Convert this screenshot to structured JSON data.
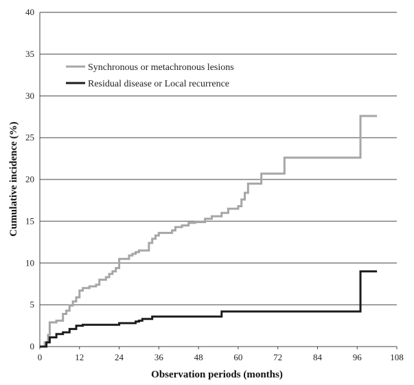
{
  "chart_data": {
    "type": "line",
    "xlabel": "Observation periods (months)",
    "ylabel": "Cumulative  incidence (%)",
    "xlim": [
      0,
      108
    ],
    "ylim": [
      0,
      40
    ],
    "xticks": [
      "0",
      "12",
      "24",
      "36",
      "48",
      "60",
      "72",
      "84",
      "96",
      "108"
    ],
    "yticks": [
      "0",
      "5",
      "10",
      "15",
      "20",
      "25",
      "30",
      "35",
      "40"
    ],
    "grid": "horizontal",
    "legend_position": "top-left",
    "step": true,
    "series": [
      {
        "name": "Synchronous or metachronous lesions",
        "color": "#a6a6a6",
        "x": [
          0,
          1.5,
          2.5,
          3,
          5,
          7,
          8,
          9,
          10,
          11,
          12,
          13,
          15,
          17,
          18,
          20,
          21,
          22,
          23,
          24,
          27,
          28,
          29,
          30,
          31,
          33,
          34,
          35,
          36,
          40,
          41,
          43,
          45,
          47,
          50,
          52,
          55,
          57,
          60,
          61,
          62,
          63,
          64,
          67,
          74,
          97,
          102
        ],
        "y": [
          0,
          0.5,
          1.4,
          2.9,
          3.1,
          3.9,
          4.3,
          4.9,
          5.4,
          5.9,
          6.7,
          7.0,
          7.2,
          7.4,
          8.0,
          8.3,
          8.7,
          9.0,
          9.4,
          10.5,
          10.9,
          11.1,
          11.3,
          11.5,
          11.5,
          12.4,
          12.9,
          13.3,
          13.6,
          13.9,
          14.3,
          14.5,
          14.8,
          14.9,
          15.3,
          15.6,
          16.0,
          16.5,
          16.8,
          17.6,
          18.4,
          19.5,
          19.5,
          20.7,
          22.6,
          27.6,
          27.6
        ]
      },
      {
        "name": "Residual disease or Local recurrence",
        "color": "#1c1c1c",
        "x": [
          0,
          2,
          3,
          5,
          7,
          9,
          11,
          13,
          15,
          18,
          24,
          29,
          30,
          31,
          34,
          38,
          46,
          55,
          58,
          70,
          97,
          102
        ],
        "y": [
          0,
          0.5,
          1.1,
          1.5,
          1.7,
          2.1,
          2.5,
          2.6,
          2.6,
          2.6,
          2.8,
          3.0,
          3.1,
          3.3,
          3.6,
          3.6,
          3.6,
          4.2,
          4.2,
          4.2,
          9.0,
          9.0
        ]
      }
    ]
  }
}
